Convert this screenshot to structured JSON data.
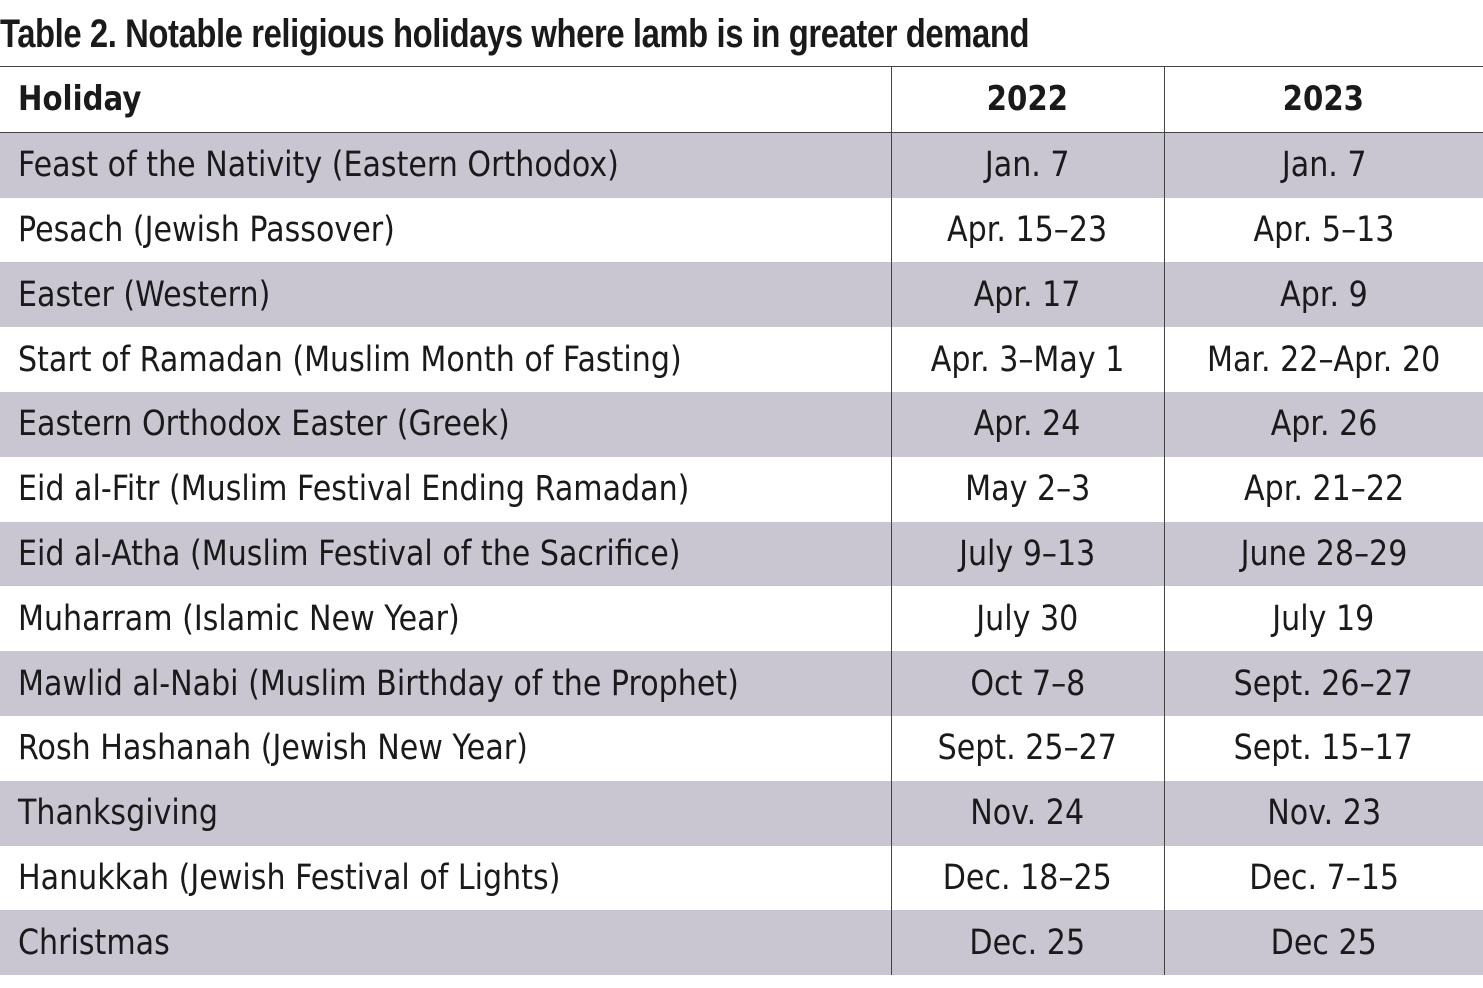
{
  "title": "Table 2. Notable religious holidays where lamb is in greater demand",
  "table": {
    "headers": [
      "Holiday",
      "2022",
      "2023"
    ],
    "rows": [
      {
        "holiday": "Feast of the Nativity (Eastern Orthodox)",
        "y2022": "Jan. 7",
        "y2023": "Jan. 7"
      },
      {
        "holiday": "Pesach (Jewish Passover)",
        "y2022": "Apr. 15–23",
        "y2023": "Apr. 5–13"
      },
      {
        "holiday": "Easter (Western)",
        "y2022": "Apr. 17",
        "y2023": "Apr. 9"
      },
      {
        "holiday": "Start of Ramadan (Muslim Month of Fasting)",
        "y2022": "Apr. 3–May 1",
        "y2023": "Mar. 22–Apr. 20"
      },
      {
        "holiday": "Eastern Orthodox Easter (Greek)",
        "y2022": "Apr. 24",
        "y2023": "Apr. 26"
      },
      {
        "holiday": "Eid al-Fitr (Muslim Festival Ending Ramadan)",
        "y2022": "May 2–3",
        "y2023": "Apr. 21–22"
      },
      {
        "holiday": "Eid al-Atha (Muslim Festival of the Sacrifice)",
        "y2022": "July 9–13",
        "y2023": "June 28–29"
      },
      {
        "holiday": "Muharram (Islamic New Year)",
        "y2022": "July 30",
        "y2023": "July 19"
      },
      {
        "holiday": "Mawlid al-Nabi (Muslim Birthday of the Prophet)",
        "y2022": "Oct 7–8",
        "y2023": "Sept. 26–27"
      },
      {
        "holiday": "Rosh Hashanah (Jewish New Year)",
        "y2022": "Sept. 25–27",
        "y2023": "Sept. 15–17"
      },
      {
        "holiday": "Thanksgiving",
        "y2022": "Nov. 24",
        "y2023": "Nov. 23"
      },
      {
        "holiday": "Hanukkah (Jewish Festival of Lights)",
        "y2022": "Dec. 18–25",
        "y2023": "Dec. 7–15"
      },
      {
        "holiday": "Christmas",
        "y2022": "Dec. 25",
        "y2023": "Dec 25"
      }
    ]
  },
  "colors": {
    "shaded_row": "#c9c6d1",
    "plain_row": "#ffffff",
    "text": "#1a1a1a",
    "rule": "#444444"
  }
}
